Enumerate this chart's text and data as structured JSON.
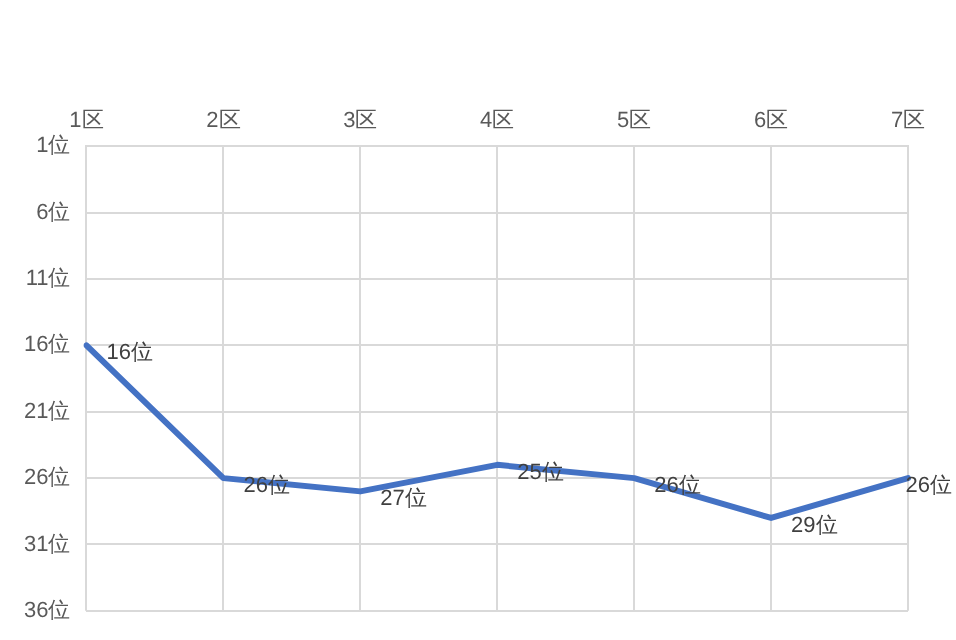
{
  "chart_data": {
    "type": "line",
    "categories": [
      "1区",
      "2区",
      "3区",
      "4区",
      "5区",
      "6区",
      "7区"
    ],
    "series": [
      {
        "color": "#4472c4",
        "values": [
          16,
          26,
          27,
          25,
          26,
          29,
          26
        ],
        "value_labels": [
          "16位",
          "26位",
          "27位",
          "25位",
          "26位",
          "29位",
          "26位"
        ]
      }
    ],
    "ylim": [
      36,
      1
    ],
    "yticks": [
      {
        "value": 1,
        "label": "1位"
      },
      {
        "value": 6,
        "label": "6位"
      },
      {
        "value": 11,
        "label": "11位"
      },
      {
        "value": 16,
        "label": "16位"
      },
      {
        "value": 21,
        "label": "21位"
      },
      {
        "value": 26,
        "label": "26位"
      },
      {
        "value": 31,
        "label": "31位"
      },
      {
        "value": 36,
        "label": "36位"
      }
    ],
    "grid": true,
    "legend": false,
    "marker": "none",
    "line_style": "solid"
  }
}
